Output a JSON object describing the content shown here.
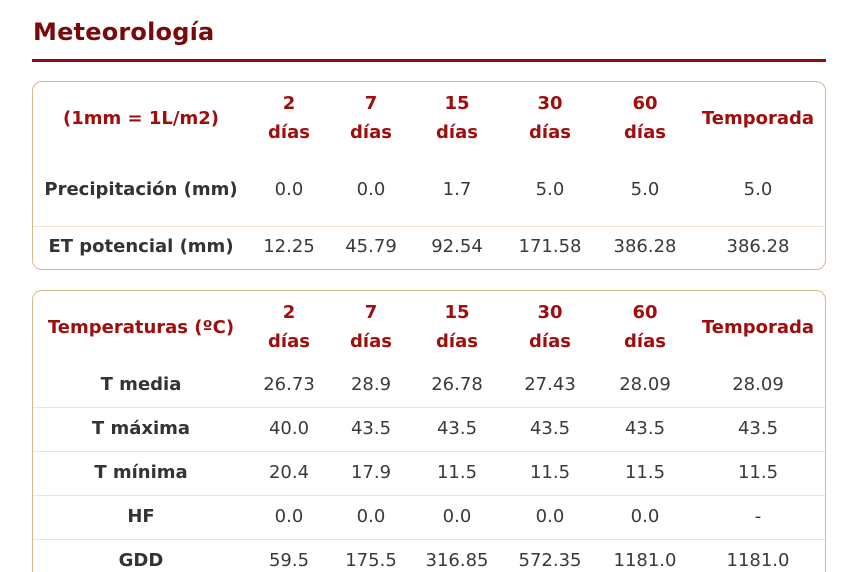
{
  "section": {
    "title": "Meteorología"
  },
  "rain_table": {
    "unit_note": "(1mm = 1L/m2)",
    "headers": [
      {
        "top": "2",
        "bottom": "días"
      },
      {
        "top": "7",
        "bottom": "días"
      },
      {
        "top": "15",
        "bottom": "días"
      },
      {
        "top": "30",
        "bottom": "días"
      },
      {
        "top": "60",
        "bottom": "días"
      },
      {
        "top": "Temporada",
        "bottom": ""
      }
    ],
    "rows": [
      {
        "label": "Precipitación (mm)",
        "values": [
          "0.0",
          "0.0",
          "1.7",
          "5.0",
          "5.0",
          "5.0"
        ]
      },
      {
        "label": "ET potencial (mm)",
        "values": [
          "12.25",
          "45.79",
          "92.54",
          "171.58",
          "386.28",
          "386.28"
        ]
      }
    ]
  },
  "temp_table": {
    "unit_note": "Temperaturas (ºC)",
    "headers": [
      {
        "top": "2",
        "bottom": "días"
      },
      {
        "top": "7",
        "bottom": "días"
      },
      {
        "top": "15",
        "bottom": "días"
      },
      {
        "top": "30",
        "bottom": "días"
      },
      {
        "top": "60",
        "bottom": "días"
      },
      {
        "top": "Temporada",
        "bottom": ""
      }
    ],
    "rows": [
      {
        "label": "T media",
        "values": [
          "26.73",
          "28.9",
          "26.78",
          "27.43",
          "28.09",
          "28.09"
        ]
      },
      {
        "label": "T máxima",
        "values": [
          "40.0",
          "43.5",
          "43.5",
          "43.5",
          "43.5",
          "43.5"
        ]
      },
      {
        "label": "T mínima",
        "values": [
          "20.4",
          "17.9",
          "11.5",
          "11.5",
          "11.5",
          "11.5"
        ]
      },
      {
        "label": "HF",
        "values": [
          "0.0",
          "0.0",
          "0.0",
          "0.0",
          "0.0",
          "-"
        ]
      },
      {
        "label": "GDD",
        "values": [
          "59.5",
          "175.5",
          "316.85",
          "572.35",
          "1181.0",
          "1181.0"
        ]
      }
    ]
  },
  "colors": {
    "title": "#7a0a0a",
    "header_text": "#a00d0d",
    "card_border": "#d7b98a",
    "body_text": "#3a3a3a"
  }
}
